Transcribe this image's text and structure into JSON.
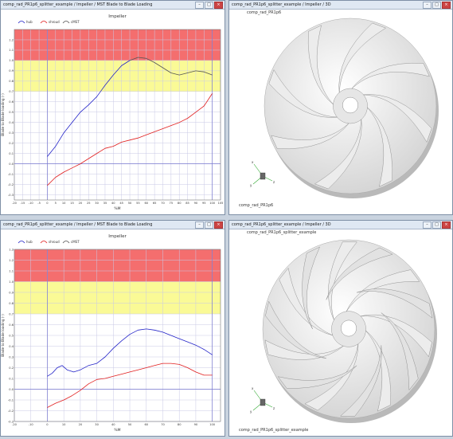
{
  "windows": {
    "tl": {
      "title": "comp_rad_PR1p6_splitter_example / Impeller / MST Blade to Blade Loading"
    },
    "tr": {
      "title": "comp_rad_PR1p6_splitter_example / Impeller / 3D"
    },
    "bl": {
      "title": "comp_rad_PR1p6_splitter_example / Impeller / MST Blade to Blade Loading"
    },
    "br": {
      "title": "comp_rad_PR1p6_splitter_example / Impeller / 3D"
    }
  },
  "controls": {
    "minimize": "–",
    "maximize": "□",
    "close": "×"
  },
  "views3d": {
    "top": {
      "header": "comp_rad_PR1p6",
      "footer": "comp_rad_PR1p6"
    },
    "bottom": {
      "header": "comp_rad_PR1p6_splitter_example",
      "footer": "comp_rad_PR1p6_splitter_example"
    }
  },
  "triad": {
    "x": "x",
    "y": "y",
    "z": "z"
  },
  "colors": {
    "red_zone": "#f46e6e",
    "yellow_zone": "#fafa96",
    "grid": "#c9c9e6",
    "hub": "#2323c8",
    "shroud": "#e11e1e",
    "cmst": "#555555"
  },
  "chart_data": [
    {
      "type": "line",
      "title": "Impeller",
      "xlabel": "%M",
      "ylabel": "Blade to Blade loading (-)",
      "xlim": [
        -20,
        105
      ],
      "ylim": [
        -0.35,
        1.3
      ],
      "xticks": [
        -20,
        -15,
        -10,
        -5,
        0,
        5,
        10,
        15,
        20,
        25,
        30,
        35,
        40,
        45,
        50,
        55,
        60,
        65,
        70,
        75,
        80,
        85,
        90,
        95,
        100,
        105
      ],
      "yticks": [
        -0.3,
        -0.2,
        -0.1,
        0.0,
        0.1,
        0.2,
        0.3,
        0.4,
        0.5,
        0.6,
        0.7,
        0.8,
        0.9,
        1.0,
        1.1,
        1.2
      ],
      "bands": [
        {
          "from": 0.7,
          "to": 1.0,
          "color": "yellow"
        },
        {
          "from": 1.0,
          "to": 1.3,
          "color": "red"
        }
      ],
      "legend": [
        "hub",
        "shroud",
        "cMST"
      ],
      "legend_position": "top-left",
      "series": [
        {
          "name": "hub",
          "color": "hub",
          "x": [
            0,
            5,
            10,
            15,
            20,
            25,
            30,
            35,
            40,
            45,
            50
          ],
          "y": [
            0.07,
            0.17,
            0.3,
            0.4,
            0.5,
            0.57,
            0.65,
            0.76,
            0.86,
            0.95,
            1.0
          ]
        },
        {
          "name": "shroud",
          "color": "shroud",
          "x": [
            0,
            5,
            10,
            15,
            20,
            25,
            30,
            35,
            40,
            45,
            50,
            55,
            60,
            65,
            70,
            75,
            80,
            85,
            90,
            95,
            100
          ],
          "y": [
            -0.21,
            -0.13,
            -0.08,
            -0.04,
            0.0,
            0.05,
            0.1,
            0.15,
            0.17,
            0.21,
            0.23,
            0.25,
            0.28,
            0.31,
            0.34,
            0.37,
            0.4,
            0.44,
            0.5,
            0.56,
            0.68
          ]
        },
        {
          "name": "cMST",
          "color": "cmst",
          "x": [
            50,
            55,
            60,
            65,
            70,
            75,
            80,
            85,
            90,
            95,
            100
          ],
          "y": [
            1.0,
            1.03,
            1.02,
            0.98,
            0.93,
            0.88,
            0.86,
            0.88,
            0.9,
            0.89,
            0.86
          ]
        }
      ]
    },
    {
      "type": "line",
      "title": "Impeller",
      "xlabel": "%M",
      "ylabel": "Blade to Blade loading (-)",
      "xlim": [
        -20,
        105
      ],
      "ylim": [
        -0.3,
        1.3
      ],
      "xticks": [
        -20,
        -10,
        0,
        10,
        20,
        30,
        40,
        50,
        60,
        70,
        80,
        90,
        100
      ],
      "yticks": [
        -0.3,
        -0.2,
        -0.1,
        0.0,
        0.1,
        0.2,
        0.3,
        0.4,
        0.5,
        0.6,
        0.7,
        0.8,
        0.9,
        1.0,
        1.1,
        1.2,
        1.3
      ],
      "bands": [
        {
          "from": 0.7,
          "to": 1.0,
          "color": "yellow"
        },
        {
          "from": 1.0,
          "to": 1.3,
          "color": "red"
        }
      ],
      "legend": [
        "hub",
        "shroud",
        "cMST"
      ],
      "legend_position": "top-left",
      "series": [
        {
          "name": "hub",
          "color": "hub",
          "x": [
            0,
            3,
            6,
            9,
            12,
            16,
            20,
            25,
            30,
            35,
            40,
            45,
            50,
            55,
            60,
            65,
            70,
            75,
            80,
            85,
            90,
            95,
            100
          ],
          "y": [
            0.12,
            0.15,
            0.2,
            0.22,
            0.18,
            0.16,
            0.18,
            0.22,
            0.24,
            0.3,
            0.38,
            0.45,
            0.51,
            0.55,
            0.56,
            0.55,
            0.53,
            0.5,
            0.47,
            0.44,
            0.41,
            0.37,
            0.32
          ]
        },
        {
          "name": "shroud",
          "color": "shroud",
          "x": [
            0,
            5,
            10,
            15,
            20,
            25,
            30,
            35,
            40,
            45,
            50,
            55,
            60,
            65,
            70,
            75,
            80,
            85,
            90,
            95,
            100
          ],
          "y": [
            -0.17,
            -0.13,
            -0.1,
            -0.06,
            -0.01,
            0.05,
            0.09,
            0.1,
            0.12,
            0.14,
            0.16,
            0.18,
            0.2,
            0.22,
            0.24,
            0.24,
            0.23,
            0.2,
            0.16,
            0.13,
            0.13
          ]
        }
      ]
    }
  ]
}
